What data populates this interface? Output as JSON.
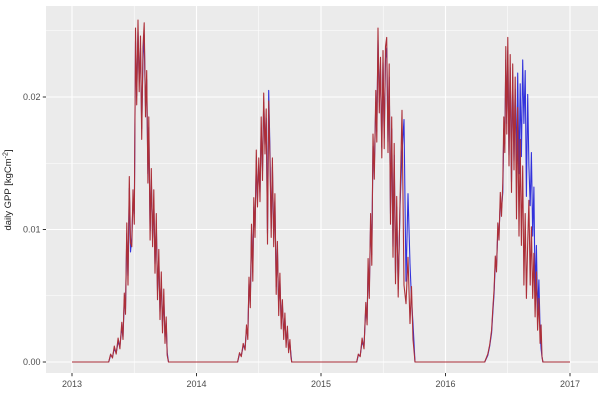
{
  "chart_data": {
    "type": "line",
    "title": "",
    "xlabel": "",
    "ylabel": {
      "plain": "daily GPP [kgCm-2]",
      "prefix": "daily GPP [kgCm",
      "superscript": "-2",
      "suffix": "]"
    },
    "x_data_range": [
      2013,
      2017
    ],
    "xlim": [
      2012.8,
      2017.22
    ],
    "ylim": [
      -0.0009,
      0.0277
    ],
    "x_ticks": {
      "values": [
        2013,
        2014,
        2015,
        2016,
        2017
      ],
      "labels": [
        "2013",
        "2014",
        "2015",
        "2016",
        "2017"
      ]
    },
    "y_ticks": {
      "values": [
        0,
        0.01,
        0.02
      ],
      "labels": [
        "0.00",
        "0.01",
        "0.02"
      ]
    },
    "x_minor_ticks": [
      2013.5,
      2014.5,
      2015.5,
      2016.5
    ],
    "y_minor_ticks": [
      0.005,
      0.015,
      0.025
    ],
    "grid": "major-and-minor-white-on-gray",
    "legend": "none",
    "style": {
      "panel_background": "#EBEBEB",
      "major_grid_color": "#FFFFFF",
      "minor_grid_color": "#FFFFFF",
      "tick_mark_color": "#333333",
      "tick_label_color": "#4D4D4D",
      "axis_title_color": "#1A1A1A",
      "series_blue_color": "#3232DC",
      "series_red_color": "#AC2F38"
    },
    "series": [
      {
        "key": "blue",
        "name": "series-blue",
        "color": "#3232DC"
      },
      {
        "key": "red",
        "name": "series-red",
        "color": "#AC2F38"
      }
    ],
    "seasons": [
      {
        "t": [
          2013.295,
          2013.31,
          2013.325,
          2013.34,
          2013.355,
          2013.37,
          2013.385,
          2013.4,
          2013.41,
          2013.42,
          2013.43,
          2013.44,
          2013.45,
          2013.46,
          2013.47,
          2013.48,
          2013.49,
          2013.5,
          2013.51,
          2013.52,
          2013.53,
          2013.54,
          2013.55,
          2013.56,
          2013.57,
          2013.58,
          2013.59,
          2013.6,
          2013.61,
          2013.617,
          2013.627,
          2013.637,
          2013.647,
          2013.657,
          2013.667,
          2013.677,
          2013.687,
          2013.697,
          2013.707,
          2013.717,
          2013.727,
          2013.737,
          2013.747,
          2013.757,
          2013.765,
          2013.775
        ],
        "red": [
          0,
          0.0006,
          0.0003,
          0.0012,
          0.0006,
          0.0018,
          0.001,
          0.003,
          0.0017,
          0.0052,
          0.0036,
          0.0105,
          0.0058,
          0.014,
          0.009,
          0.0087,
          0.013,
          0.0104,
          0.0252,
          0.0194,
          0.0258,
          0.0204,
          0.0246,
          0.0168,
          0.0238,
          0.0256,
          0.0185,
          0.022,
          0.0135,
          0.0185,
          0.0092,
          0.0146,
          0.0087,
          0.013,
          0.0067,
          0.0112,
          0.0047,
          0.0085,
          0.0032,
          0.0068,
          0.0022,
          0.0055,
          0.0014,
          0.0034,
          0.0005,
          0
        ],
        "blue": [
          0,
          0.0005,
          0.0004,
          0.001,
          0.0007,
          0.0015,
          0.0012,
          0.0026,
          0.0019,
          0.0047,
          0.004,
          0.0097,
          0.0065,
          0.0131,
          0.0083,
          0.0094,
          0.0121,
          0.0112,
          0.0242,
          0.0201,
          0.0249,
          0.0212,
          0.0237,
          0.0176,
          0.0228,
          0.0247,
          0.0193,
          0.0213,
          0.0142,
          0.0177,
          0.0099,
          0.0138,
          0.0094,
          0.0122,
          0.0074,
          0.0104,
          0.0054,
          0.0078,
          0.0038,
          0.0061,
          0.0027,
          0.0048,
          0.0019,
          0.0029,
          0.0007,
          0
        ]
      },
      {
        "t": [
          2014.33,
          2014.345,
          2014.36,
          2014.375,
          2014.39,
          2014.402,
          2014.412,
          2014.422,
          2014.432,
          2014.442,
          2014.452,
          2014.46,
          2014.47,
          2014.48,
          2014.49,
          2014.5,
          2014.51,
          2014.52,
          2014.53,
          2014.54,
          2014.55,
          2014.56,
          2014.57,
          2014.58,
          2014.59,
          2014.6,
          2014.61,
          2014.62,
          2014.63,
          2014.64,
          2014.65,
          2014.66,
          2014.67,
          2014.68,
          2014.69,
          2014.7,
          2014.71,
          2014.72,
          2014.73,
          2014.74,
          2014.75,
          2014.758,
          2014.765
        ],
        "red": [
          0,
          0.0007,
          0.0004,
          0.0014,
          0.0009,
          0.0028,
          0.0017,
          0.0064,
          0.0041,
          0.0104,
          0.0061,
          0.0124,
          0.0094,
          0.016,
          0.0117,
          0.0154,
          0.0121,
          0.0185,
          0.0137,
          0.0203,
          0.0157,
          0.0191,
          0.0089,
          0.0197,
          0.0151,
          0.0094,
          0.0154,
          0.0087,
          0.0127,
          0.0051,
          0.0091,
          0.0035,
          0.0067,
          0.0025,
          0.0047,
          0.0017,
          0.0037,
          0.0011,
          0.0027,
          0.0007,
          0.0017,
          0.0004,
          0
        ],
        "blue": [
          0,
          0.0006,
          0.0005,
          0.0012,
          0.0011,
          0.0025,
          0.002,
          0.0059,
          0.0046,
          0.0097,
          0.0068,
          0.0117,
          0.0101,
          0.0152,
          0.0124,
          0.0147,
          0.0128,
          0.0177,
          0.0144,
          0.0196,
          0.0164,
          0.0184,
          0.0097,
          0.0205,
          0.0158,
          0.0101,
          0.0147,
          0.0094,
          0.0121,
          0.0057,
          0.0085,
          0.0041,
          0.0061,
          0.003,
          0.0043,
          0.0021,
          0.0033,
          0.0015,
          0.0023,
          0.001,
          0.0014,
          0.0006,
          0
        ]
      },
      {
        "t": [
          2015.287,
          2015.3,
          2015.315,
          2015.33,
          2015.345,
          2015.36,
          2015.37,
          2015.378,
          2015.388,
          2015.398,
          2015.408,
          2015.418,
          2015.428,
          2015.44,
          2015.448,
          2015.458,
          2015.468,
          2015.478,
          2015.488,
          2015.498,
          2015.508,
          2015.518,
          2015.528,
          2015.538,
          2015.548,
          2015.558,
          2015.568,
          2015.578,
          2015.588,
          2015.598,
          2015.608,
          2015.62,
          2015.635,
          2015.651,
          2015.667,
          2015.683,
          2015.699,
          2015.715,
          2015.727,
          2015.739,
          2015.755
        ],
        "red": [
          0,
          0.0006,
          0.0004,
          0.0018,
          0.001,
          0.0045,
          0.0028,
          0.0078,
          0.0048,
          0.0112,
          0.0073,
          0.0172,
          0.0138,
          0.0205,
          0.0166,
          0.0252,
          0.0188,
          0.023,
          0.0154,
          0.0235,
          0.0161,
          0.0238,
          0.0245,
          0.0158,
          0.0225,
          0.0104,
          0.0185,
          0.0079,
          0.0165,
          0.0059,
          0.0125,
          0.0049,
          0.0124,
          0.019,
          0.0058,
          0.0044,
          0.0079,
          0.0029,
          0.0057,
          0.0017,
          0
        ],
        "blue": [
          0,
          0.0005,
          0.0005,
          0.0015,
          0.0012,
          0.0041,
          0.0032,
          0.0071,
          0.0054,
          0.0104,
          0.0081,
          0.0163,
          0.0146,
          0.0196,
          0.0174,
          0.0243,
          0.0196,
          0.0221,
          0.0162,
          0.0226,
          0.0169,
          0.0229,
          0.0237,
          0.0166,
          0.0215,
          0.0112,
          0.0176,
          0.0087,
          0.0156,
          0.0067,
          0.0117,
          0.0055,
          0.0119,
          0.0158,
          0.0183,
          0.0061,
          0.0127,
          0.0074,
          0.0047,
          0.0029,
          0
        ]
      },
      {
        "t": [
          2016.315,
          2016.34,
          2016.355,
          2016.37,
          2016.38,
          2016.39,
          2016.4,
          2016.41,
          2016.42,
          2016.43,
          2016.44,
          2016.45,
          2016.46,
          2016.468,
          2016.476,
          2016.484,
          2016.492,
          2016.5,
          2016.51,
          2016.52,
          2016.53,
          2016.54,
          2016.55,
          2016.56,
          2016.57,
          2016.58,
          2016.59,
          2016.6,
          2016.61,
          2016.62,
          2016.63,
          2016.64,
          2016.65,
          2016.66,
          2016.67,
          2016.68,
          2016.69,
          2016.7,
          2016.71,
          2016.72,
          2016.73,
          2016.74,
          2016.75,
          2016.76,
          2016.768,
          2016.775,
          2016.782
        ],
        "red": [
          0,
          0.0006,
          0.0013,
          0.0024,
          0.004,
          0.0055,
          0.008,
          0.0068,
          0.0105,
          0.0092,
          0.0128,
          0.011,
          0.0135,
          0.0185,
          0.0158,
          0.0238,
          0.0172,
          0.0245,
          0.0148,
          0.0232,
          0.0128,
          0.0225,
          0.0145,
          0.0215,
          0.0108,
          0.0192,
          0.0095,
          0.0168,
          0.0088,
          0.0148,
          0.0058,
          0.0112,
          0.0048,
          0.009,
          0.0122,
          0.0058,
          0.0102,
          0.0048,
          0.0082,
          0.0034,
          0.0068,
          0.0024,
          0.0048,
          0.0014,
          0.0028,
          0.0004,
          0
        ],
        "blue": [
          0,
          0.0005,
          0.0012,
          0.0022,
          0.0037,
          0.0052,
          0.0075,
          0.0072,
          0.0098,
          0.0097,
          0.0121,
          0.0116,
          0.0128,
          0.0176,
          0.0165,
          0.0228,
          0.018,
          0.0235,
          0.0156,
          0.0222,
          0.0136,
          0.0215,
          0.0152,
          0.0206,
          0.015,
          0.0218,
          0.0142,
          0.021,
          0.0155,
          0.0228,
          0.018,
          0.022,
          0.0125,
          0.0202,
          0.0148,
          0.0118,
          0.0158,
          0.0095,
          0.0132,
          0.005,
          0.0088,
          0.0038,
          0.0062,
          0.0024,
          0.001,
          0.0004,
          0
        ]
      }
    ]
  }
}
